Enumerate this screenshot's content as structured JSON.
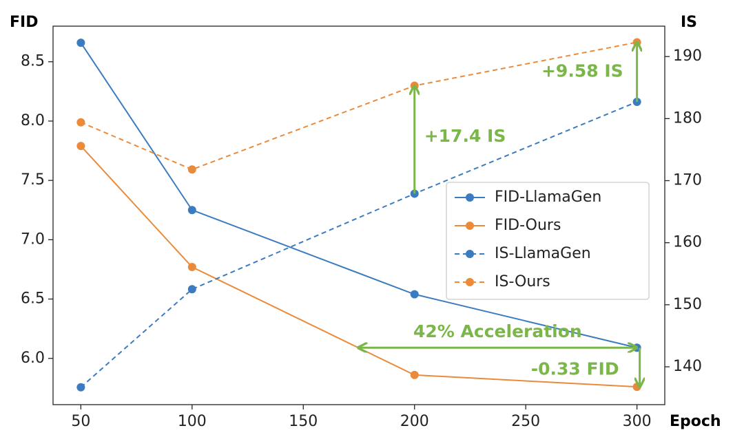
{
  "chart_data": {
    "type": "line",
    "x_label": "Epoch",
    "y_label": "FID",
    "y2_label": "IS",
    "x": [
      50,
      100,
      200,
      300
    ],
    "xlim": [
      37.5,
      312.5
    ],
    "xticks": [
      50,
      100,
      150,
      200,
      250,
      300
    ],
    "ylim": [
      5.61,
      8.8
    ],
    "yticks": [
      {
        "value": 6,
        "label": "6.0"
      },
      6.5,
      {
        "value": 7,
        "label": "7.0"
      },
      7.5,
      {
        "value": 8,
        "label": "8.0"
      },
      8.5
    ],
    "y2lim": [
      133.9,
      194.9
    ],
    "y2ticks": [
      140,
      150,
      160,
      170,
      180,
      190
    ],
    "legend": "center right",
    "series": [
      {
        "name": "FID-LlamaGen",
        "color": "#3b7bbf",
        "style": "solid",
        "values": [
          8.66,
          7.25,
          6.54,
          6.09
        ]
      },
      {
        "name": "FID-Ours",
        "color": "#ea8a3a",
        "style": "solid",
        "values": [
          7.79,
          6.77,
          5.86,
          5.76
        ]
      },
      {
        "name": "IS-LlamaGen",
        "color": "#3b7bbf",
        "style": "dashed",
        "axis": "y2",
        "values": [
          136.7,
          152.5,
          167.9,
          182.7
        ]
      },
      {
        "name": "IS-Ours",
        "color": "#ea8a3a",
        "style": "dashed",
        "axis": "y2",
        "values": [
          179.4,
          171.8,
          185.3,
          192.3
        ]
      }
    ],
    "annotations": [
      {
        "text": "+17.4 IS"
      },
      {
        "text": "+9.58 IS"
      },
      {
        "text": "42% Acceleration"
      },
      {
        "text": "-0.33 FID"
      }
    ]
  }
}
